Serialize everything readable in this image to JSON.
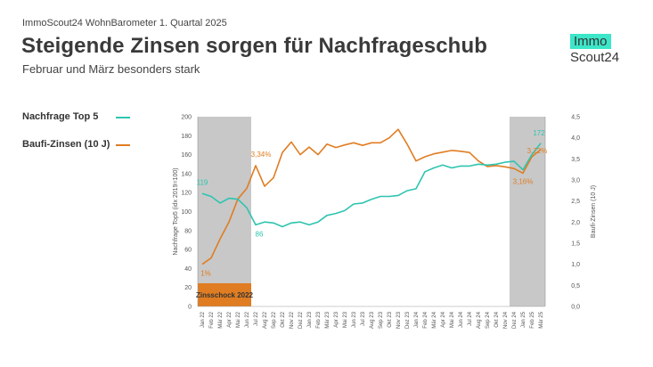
{
  "header": {
    "kicker": "ImmoScout24 WohnBarometer 1. Quartal 2025",
    "title": "Steigende Zinsen sorgen für Nachfrageschub",
    "subtitle": "Februar und März besonders stark"
  },
  "logo": {
    "line1": "Immo",
    "line2": "Scout24"
  },
  "colors": {
    "nachfrage": "#2ec4b0",
    "zinsen": "#e07d22",
    "shade": "#c8c8c8",
    "zinsschock": "#e07d22"
  },
  "chart_data": {
    "type": "line",
    "x": [
      "Jan 22",
      "Feb 22",
      "Mär 22",
      "Apr 22",
      "Mai 22",
      "Jun 22",
      "Jul 22",
      "Aug 22",
      "Sep 22",
      "Okt 22",
      "Nov 22",
      "Dez 22",
      "Jan 23",
      "Feb 23",
      "Mär 23",
      "Apr 23",
      "Mai 23",
      "Jun 23",
      "Jul 23",
      "Aug 23",
      "Sep 23",
      "Okt 23",
      "Nov 23",
      "Dez 23",
      "Jan 24",
      "Feb 24",
      "Mär 24",
      "Apr 24",
      "Mai 24",
      "Jun 24",
      "Jul 24",
      "Aug 24",
      "Sep 24",
      "Okt 24",
      "Nov 24",
      "Dez 24",
      "Jan 25",
      "Feb 25",
      "Mär 25"
    ],
    "series": [
      {
        "name": "Nachfrage Top 5",
        "axis": "left",
        "values": [
          119,
          116,
          109,
          114,
          113,
          104,
          86,
          89,
          88,
          84,
          88,
          89,
          86,
          89,
          96,
          98,
          101,
          108,
          109,
          113,
          116,
          116,
          117,
          122,
          124,
          142,
          146,
          149,
          146,
          148,
          148,
          150,
          149,
          150,
          152,
          153,
          144,
          160,
          172
        ]
      },
      {
        "name": "Baufi-Zinsen (10 J)",
        "axis": "right",
        "values": [
          1.0,
          1.15,
          1.6,
          2.0,
          2.55,
          2.8,
          3.34,
          2.85,
          3.05,
          3.65,
          3.9,
          3.6,
          3.78,
          3.6,
          3.85,
          3.77,
          3.83,
          3.88,
          3.82,
          3.88,
          3.88,
          4.0,
          4.2,
          3.85,
          3.45,
          3.55,
          3.62,
          3.66,
          3.7,
          3.68,
          3.65,
          3.45,
          3.32,
          3.34,
          3.31,
          3.27,
          3.16,
          3.55,
          3.72
        ]
      }
    ],
    "ylabel_left": "Nachfrage Top5 (idx 2019=100)",
    "ylabel_right": "Baufi-Zinsen (10 J)",
    "ylim_left": [
      0,
      200
    ],
    "ylim_right": [
      0.0,
      4.5
    ],
    "yticks_left": [
      "0",
      "20",
      "40",
      "60",
      "80",
      "100",
      "120",
      "140",
      "160",
      "180",
      "200"
    ],
    "yticks_right": [
      "0,0",
      "0,5",
      "1,0",
      "1,5",
      "2,0",
      "2,5",
      "3,0",
      "3,5",
      "4,0",
      "4,5"
    ],
    "shaded_ranges": [
      [
        0,
        5
      ],
      [
        35,
        38
      ]
    ],
    "annotation_label": "Zinsschock 2022",
    "data_labels": [
      {
        "series": 0,
        "index": 0,
        "text": "119"
      },
      {
        "series": 0,
        "index": 6,
        "text": "86"
      },
      {
        "series": 0,
        "index": 38,
        "text": "172"
      },
      {
        "series": 1,
        "index": 0,
        "text": "1%"
      },
      {
        "series": 1,
        "index": 6,
        "text": "3,34%"
      },
      {
        "series": 1,
        "index": 36,
        "text": "3,16%"
      },
      {
        "series": 1,
        "index": 38,
        "text": "3,72%"
      }
    ],
    "grid": false,
    "legend": "left"
  }
}
